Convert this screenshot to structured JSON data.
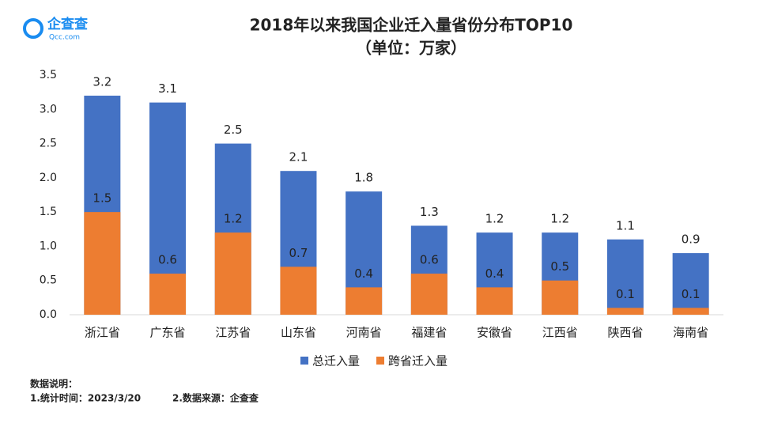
{
  "header": {
    "logo_text": "企查查",
    "logo_sub": "Qcc.com"
  },
  "chart_data": {
    "type": "bar",
    "overlap": true,
    "title": "2018年以来我国企业迁入量省份分布TOP10",
    "subtitle": "（单位：万家）",
    "categories": [
      "浙江省",
      "广东省",
      "江苏省",
      "山东省",
      "河南省",
      "福建省",
      "安徽省",
      "江西省",
      "陕西省",
      "海南省"
    ],
    "series": [
      {
        "name": "总迁入量",
        "color": "#4472c4",
        "values": [
          3.2,
          3.1,
          2.5,
          2.1,
          1.8,
          1.3,
          1.2,
          1.2,
          1.1,
          0.9
        ]
      },
      {
        "name": "跨省迁入量",
        "color": "#ed7d31",
        "values": [
          1.5,
          0.6,
          1.2,
          0.7,
          0.4,
          0.6,
          0.4,
          0.5,
          0.1,
          0.1
        ]
      }
    ],
    "ylim": [
      0,
      3.5
    ],
    "yticks": [
      {
        "value": 0,
        "label": "0.0"
      },
      0.5,
      {
        "value": 1,
        "label": "1.0"
      },
      1.5,
      {
        "value": 2,
        "label": "2.0"
      },
      2.5,
      {
        "value": 3,
        "label": "3.0"
      },
      3.5
    ],
    "grid": false,
    "legend": "bottom"
  },
  "footnote": {
    "heading": "数据说明：",
    "lines": [
      "1.统计时间：2023/3/20",
      "2.数据来源：企查查"
    ]
  }
}
